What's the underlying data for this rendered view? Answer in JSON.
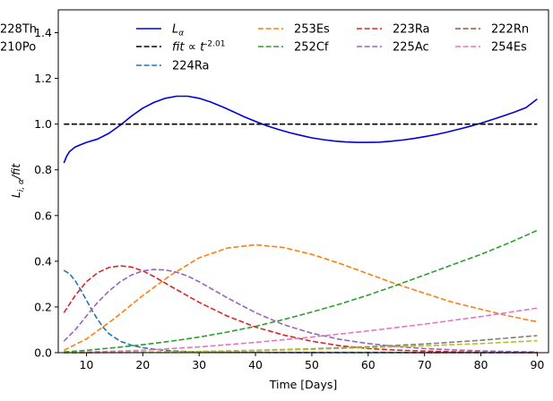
{
  "chart_data": {
    "type": "line",
    "xlabel": "Time [Days]",
    "ylabel": "L_{i,α}/fit",
    "xlim": [
      5,
      92
    ],
    "ylim": [
      0,
      1.5
    ],
    "xticks": [
      10,
      20,
      30,
      40,
      50,
      60,
      70,
      80,
      90
    ],
    "yticks": [
      0.0,
      0.2,
      0.4,
      0.6,
      0.8,
      1.0,
      1.2,
      1.4
    ],
    "xtick_labels": [
      "10",
      "20",
      "30",
      "40",
      "50",
      "60",
      "70",
      "80",
      "90"
    ],
    "ytick_labels": [
      "0.0",
      "0.2",
      "0.4",
      "0.6",
      "0.8",
      "1.0",
      "1.2",
      "1.4"
    ],
    "grid": false,
    "legend_placement": "top",
    "legend_columns": 4,
    "series": [
      {
        "name": "L_α",
        "color": "#0000dd",
        "style": "solid",
        "x": [
          6,
          6.5,
          7,
          8,
          9,
          10,
          12,
          14,
          16,
          18,
          20,
          22,
          24,
          26,
          28,
          30,
          32,
          34,
          36,
          38,
          40,
          42,
          44,
          46,
          48,
          50,
          52,
          54,
          56,
          58,
          60,
          62,
          64,
          66,
          68,
          70,
          72,
          74,
          76,
          78,
          80,
          82,
          84,
          86,
          88,
          90
        ],
        "y": [
          0.83,
          0.86,
          0.88,
          0.9,
          0.91,
          0.92,
          0.935,
          0.96,
          0.995,
          1.035,
          1.07,
          1.095,
          1.113,
          1.122,
          1.122,
          1.113,
          1.097,
          1.077,
          1.055,
          1.032,
          1.012,
          0.993,
          0.977,
          0.963,
          0.951,
          0.94,
          0.932,
          0.926,
          0.922,
          0.92,
          0.92,
          0.921,
          0.925,
          0.93,
          0.937,
          0.945,
          0.954,
          0.965,
          0.977,
          0.99,
          1.004,
          1.02,
          1.036,
          1.053,
          1.072,
          1.11
        ]
      },
      {
        "name": "fit ∝ t^{-2.01}",
        "color": "#000000",
        "style": "dashed",
        "x": [
          6,
          90
        ],
        "y": [
          1.0,
          1.0
        ]
      },
      {
        "name": "224Ra",
        "color": "#1f77b4",
        "style": "dashed",
        "x": [
          6,
          7,
          8,
          9,
          10,
          11,
          12,
          13,
          14,
          16,
          18,
          20,
          22,
          25,
          30,
          40,
          50,
          60,
          70,
          80,
          90
        ],
        "y": [
          0.36,
          0.345,
          0.315,
          0.275,
          0.23,
          0.185,
          0.145,
          0.11,
          0.083,
          0.05,
          0.032,
          0.022,
          0.015,
          0.008,
          0.003,
          0.001,
          0.0,
          0.0,
          0.0,
          0.0,
          0.0
        ]
      },
      {
        "name": "253Es",
        "color": "#ff7f0e",
        "style": "dashed",
        "x": [
          6,
          10,
          15,
          20,
          25,
          30,
          35,
          40,
          45,
          50,
          55,
          60,
          65,
          70,
          75,
          80,
          85,
          90
        ],
        "y": [
          0.01,
          0.06,
          0.15,
          0.25,
          0.34,
          0.415,
          0.458,
          0.472,
          0.46,
          0.43,
          0.39,
          0.345,
          0.3,
          0.26,
          0.22,
          0.19,
          0.16,
          0.135
        ]
      },
      {
        "name": "252Cf",
        "color": "#2ca02c",
        "style": "dashed",
        "x": [
          6,
          10,
          15,
          20,
          25,
          30,
          35,
          40,
          45,
          50,
          55,
          60,
          65,
          70,
          75,
          80,
          85,
          90
        ],
        "y": [
          0.003,
          0.01,
          0.022,
          0.035,
          0.05,
          0.068,
          0.09,
          0.115,
          0.145,
          0.178,
          0.213,
          0.252,
          0.295,
          0.34,
          0.385,
          0.43,
          0.48,
          0.535
        ]
      },
      {
        "name": "223Ra",
        "color": "#d62728",
        "style": "dashed",
        "x": [
          6,
          8,
          10,
          12,
          14,
          16,
          18,
          20,
          22,
          25,
          30,
          35,
          40,
          45,
          50,
          55,
          60,
          65,
          70,
          75,
          80,
          85,
          90
        ],
        "y": [
          0.175,
          0.25,
          0.31,
          0.35,
          0.373,
          0.38,
          0.375,
          0.358,
          0.333,
          0.29,
          0.22,
          0.16,
          0.112,
          0.077,
          0.05,
          0.03,
          0.018,
          0.011,
          0.007,
          0.004,
          0.002,
          0.001,
          0.0
        ]
      },
      {
        "name": "225Ac",
        "color": "#9467bd",
        "style": "dashed",
        "x": [
          6,
          8,
          10,
          12,
          14,
          16,
          18,
          20,
          22,
          24,
          26,
          28,
          30,
          35,
          40,
          45,
          50,
          55,
          60,
          65,
          70,
          75,
          80,
          85,
          90
        ],
        "y": [
          0.05,
          0.1,
          0.16,
          0.22,
          0.27,
          0.31,
          0.34,
          0.358,
          0.364,
          0.362,
          0.352,
          0.335,
          0.31,
          0.24,
          0.175,
          0.122,
          0.085,
          0.058,
          0.04,
          0.027,
          0.018,
          0.012,
          0.008,
          0.005,
          0.003
        ]
      },
      {
        "name": "222Rn",
        "color": "#8c564b",
        "style": "dashed",
        "x": [
          6,
          20,
          40,
          60,
          90
        ],
        "y": [
          0.0,
          0.001,
          0.001,
          0.001,
          0.0
        ]
      },
      {
        "name": "254Es",
        "color": "#e377c2",
        "style": "dashed",
        "x": [
          6,
          10,
          20,
          30,
          40,
          50,
          60,
          70,
          80,
          90
        ],
        "y": [
          0.0,
          0.003,
          0.01,
          0.025,
          0.045,
          0.068,
          0.095,
          0.125,
          0.158,
          0.195
        ]
      },
      {
        "name": "228Th",
        "color": "#7f7f7f",
        "style": "dashed",
        "x": [
          6,
          20,
          30,
          40,
          50,
          60,
          70,
          80,
          90
        ],
        "y": [
          0.0,
          0.002,
          0.005,
          0.01,
          0.017,
          0.026,
          0.038,
          0.054,
          0.075
        ]
      },
      {
        "name": "210Po",
        "color": "#bcbd22",
        "style": "dashed",
        "x": [
          6,
          20,
          30,
          40,
          50,
          60,
          70,
          80,
          90
        ],
        "y": [
          0.0,
          0.002,
          0.005,
          0.009,
          0.015,
          0.022,
          0.03,
          0.04,
          0.052
        ]
      }
    ]
  }
}
